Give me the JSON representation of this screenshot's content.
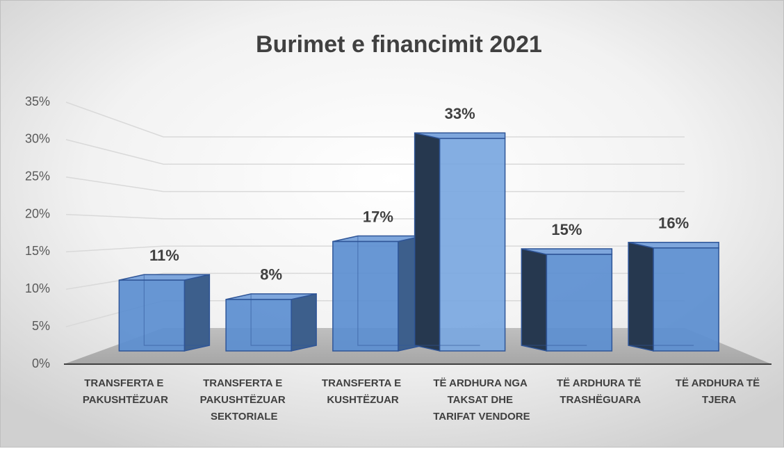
{
  "chart_data": {
    "type": "bar3d",
    "title": "Burimet e financimit 2021",
    "categories": [
      "TRANSFERTA E PAKUSHTËZUAR",
      "TRANSFERTA E PAKUSHTËZUAR SEKTORIALE",
      "TRANSFERTA E KUSHTËZUAR",
      "TË ARDHURA NGA TAKSAT DHE TARIFAT VENDORE",
      "TË ARDHURA TË TRASHËGUARA",
      "TË ARDHURA TË TJERA"
    ],
    "values": [
      11,
      8,
      17,
      33,
      15,
      16
    ],
    "value_labels": [
      "11%",
      "8%",
      "17%",
      "33%",
      "15%",
      "16%"
    ],
    "color": "#5b8ed0",
    "ylim": [
      0,
      35
    ],
    "yticks": [
      {
        "value": 0,
        "label": "0%"
      },
      {
        "value": 5,
        "label": "5%"
      },
      {
        "value": 10,
        "label": "10%"
      },
      {
        "value": 15,
        "label": "15%"
      },
      {
        "value": 20,
        "label": "20%"
      },
      {
        "value": 25,
        "label": "25%"
      },
      {
        "value": 30,
        "label": "30%"
      },
      {
        "value": 35,
        "label": "35%"
      }
    ],
    "grid": true
  }
}
